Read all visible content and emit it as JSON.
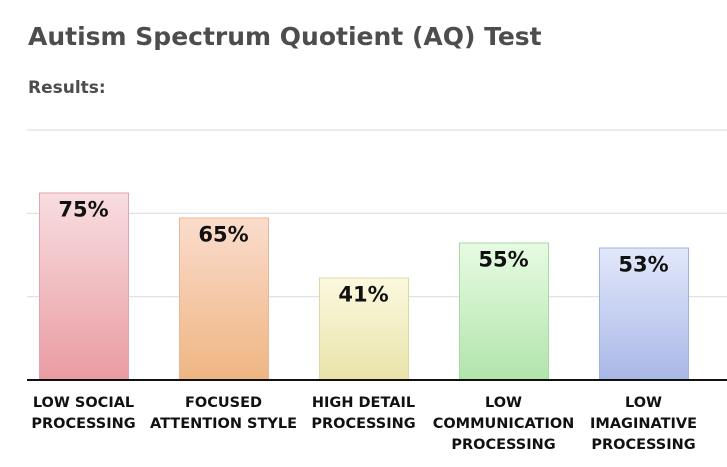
{
  "header": {
    "title": "Autism Spectrum Quotient (AQ) Test",
    "subtitle": "Results:"
  },
  "chart_data": {
    "type": "bar",
    "categories": [
      [
        "LOW SOCIAL",
        "PROCESSING"
      ],
      [
        "FOCUSED",
        "ATTENTION STYLE"
      ],
      [
        "HIGH DETAIL",
        "PROCESSING"
      ],
      [
        "LOW",
        "COMMUNICATION",
        "PROCESSING"
      ],
      [
        "LOW",
        "IMAGINATIVE",
        "PROCESSING"
      ]
    ],
    "values": [
      75,
      65,
      41,
      55,
      53
    ],
    "value_labels": [
      "75%",
      "65%",
      "41%",
      "55%",
      "53%"
    ],
    "ylim": [
      0,
      100
    ],
    "gridlines": [
      33.3,
      66.7,
      100
    ],
    "grid": true,
    "legend": false,
    "colors": [
      {
        "top": "#f8dde0",
        "bottom": "#e99ca2",
        "stroke": "#e3a5ab"
      },
      {
        "top": "#fadccc",
        "bottom": "#efb582",
        "stroke": "#e8b896"
      },
      {
        "top": "#fbf9df",
        "bottom": "#e9e3a9",
        "stroke": "#ddd8a3"
      },
      {
        "top": "#e6fbe2",
        "bottom": "#b2e4ac",
        "stroke": "#a6d9a3"
      },
      {
        "top": "#e2e8fb",
        "bottom": "#a9b7e6",
        "stroke": "#a4b1e0"
      }
    ],
    "gridline_color": "#d9d9d9",
    "axis_color": "#111111"
  }
}
